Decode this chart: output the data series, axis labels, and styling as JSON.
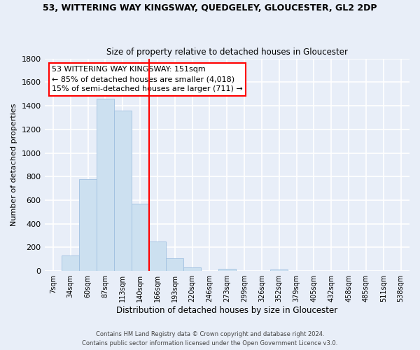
{
  "title": "53, WITTERING WAY KINGSWAY, QUEDGELEY, GLOUCESTER, GL2 2DP",
  "subtitle": "Size of property relative to detached houses in Gloucester",
  "xlabel": "Distribution of detached houses by size in Gloucester",
  "ylabel": "Number of detached properties",
  "bar_color": "#cce0f0",
  "bar_edge_color": "#a0c0e0",
  "background_color": "#e8eef8",
  "grid_color": "#ffffff",
  "tick_labels": [
    "7sqm",
    "34sqm",
    "60sqm",
    "87sqm",
    "113sqm",
    "140sqm",
    "166sqm",
    "193sqm",
    "220sqm",
    "246sqm",
    "273sqm",
    "299sqm",
    "326sqm",
    "352sqm",
    "379sqm",
    "405sqm",
    "432sqm",
    "458sqm",
    "485sqm",
    "511sqm",
    "538sqm"
  ],
  "bar_heights": [
    0,
    130,
    780,
    1460,
    1360,
    570,
    250,
    105,
    30,
    0,
    20,
    0,
    0,
    15,
    0,
    0,
    0,
    0,
    0,
    0,
    0
  ],
  "ylim": [
    0,
    1800
  ],
  "yticks": [
    0,
    200,
    400,
    600,
    800,
    1000,
    1200,
    1400,
    1600,
    1800
  ],
  "property_line_x": 5.5,
  "annotation_line1": "53 WITTERING WAY KINGSWAY: 151sqm",
  "annotation_line2": "← 85% of detached houses are smaller (4,018)",
  "annotation_line3": "15% of semi-detached houses are larger (711) →",
  "footer_line1": "Contains HM Land Registry data © Crown copyright and database right 2024.",
  "footer_line2": "Contains public sector information licensed under the Open Government Licence v3.0."
}
